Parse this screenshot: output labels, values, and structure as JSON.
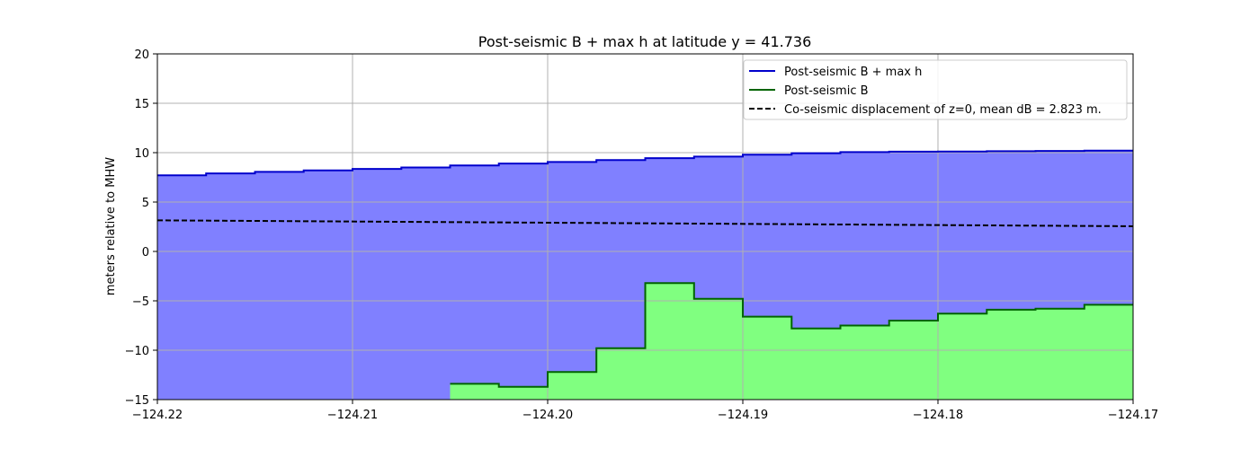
{
  "chart_data": {
    "type": "area",
    "title": "Post-seismic B + max h at latitude y = 41.736",
    "xlabel": "",
    "ylabel": "meters relative to MHW",
    "xlim": [
      -124.22,
      -124.17
    ],
    "ylim": [
      -15,
      20
    ],
    "x_ticks": [
      -124.22,
      -124.21,
      -124.2,
      -124.19,
      -124.18,
      -124.17
    ],
    "x_tick_labels": [
      "−124.22",
      "−124.21",
      "−124.20",
      "−124.19",
      "−124.18",
      "−124.17"
    ],
    "y_ticks": [
      -15,
      -10,
      -5,
      0,
      5,
      10,
      15,
      20
    ],
    "y_tick_labels": [
      "−15",
      "−10",
      "−5",
      "0",
      "5",
      "10",
      "15",
      "20"
    ],
    "grid": true,
    "legend_position": "top-right",
    "series": [
      {
        "name": "Post-seismic B + max h",
        "color": "#0000cc",
        "fill": "#8080ff",
        "style": "step-solid",
        "x": [
          -124.22,
          -124.2175,
          -124.215,
          -124.2125,
          -124.21,
          -124.2075,
          -124.205,
          -124.2025,
          -124.2,
          -124.1975,
          -124.195,
          -124.1925,
          -124.19,
          -124.1875,
          -124.185,
          -124.1825,
          -124.18,
          -124.1775,
          -124.175,
          -124.1725,
          -124.17
        ],
        "y": [
          7.7,
          7.9,
          8.05,
          8.2,
          8.35,
          8.5,
          8.7,
          8.9,
          9.05,
          9.25,
          9.45,
          9.6,
          9.8,
          9.95,
          10.05,
          10.1,
          10.12,
          10.15,
          10.17,
          10.2,
          10.2
        ]
      },
      {
        "name": "Post-seismic B",
        "color": "#006400",
        "fill": "#80ff80",
        "style": "step-solid",
        "x": [
          -124.205,
          -124.2025,
          -124.2,
          -124.1975,
          -124.195,
          -124.1925,
          -124.19,
          -124.1875,
          -124.185,
          -124.1825,
          -124.18,
          -124.1775,
          -124.175,
          -124.1725,
          -124.17
        ],
        "y": [
          -13.4,
          -13.7,
          -12.2,
          -9.8,
          -3.2,
          -4.8,
          -6.6,
          -7.8,
          -7.5,
          -7.0,
          -6.3,
          -5.9,
          -5.8,
          -5.4,
          -5.4
        ]
      },
      {
        "name": "Co-seismic displacement of z=0, mean dB = 2.823 m.",
        "color": "#000000",
        "style": "dashed",
        "x": [
          -124.22,
          -124.17
        ],
        "y": [
          3.15,
          2.55
        ]
      }
    ]
  }
}
